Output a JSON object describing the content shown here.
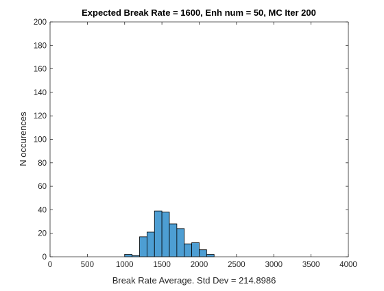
{
  "chart_data": {
    "type": "bar",
    "title": "Expected Break Rate = 1600, Enh num = 50, MC Iter 200",
    "xlabel": "Break Rate Average. Std Dev = 214.8986",
    "ylabel": "N occurences",
    "xlim": [
      0,
      4000
    ],
    "ylim": [
      0,
      200
    ],
    "xticks": [
      0,
      500,
      1000,
      1500,
      2000,
      2500,
      3000,
      3500,
      4000
    ],
    "yticks": [
      0,
      20,
      40,
      60,
      80,
      100,
      120,
      140,
      160,
      180,
      200
    ],
    "bin_width": 100,
    "bins": [
      {
        "x0": 1000,
        "x1": 1100,
        "count": 2
      },
      {
        "x0": 1100,
        "x1": 1200,
        "count": 1
      },
      {
        "x0": 1200,
        "x1": 1300,
        "count": 17
      },
      {
        "x0": 1300,
        "x1": 1400,
        "count": 21
      },
      {
        "x0": 1400,
        "x1": 1500,
        "count": 39
      },
      {
        "x0": 1500,
        "x1": 1600,
        "count": 38
      },
      {
        "x0": 1600,
        "x1": 1700,
        "count": 28
      },
      {
        "x0": 1700,
        "x1": 1800,
        "count": 24
      },
      {
        "x0": 1800,
        "x1": 1900,
        "count": 11
      },
      {
        "x0": 1900,
        "x1": 2000,
        "count": 12
      },
      {
        "x0": 2000,
        "x1": 2100,
        "count": 6
      },
      {
        "x0": 2100,
        "x1": 2200,
        "count": 2
      }
    ],
    "bar_color": "#4d9ed3",
    "edge_color": "#000000",
    "grid": false,
    "legend": "none"
  }
}
